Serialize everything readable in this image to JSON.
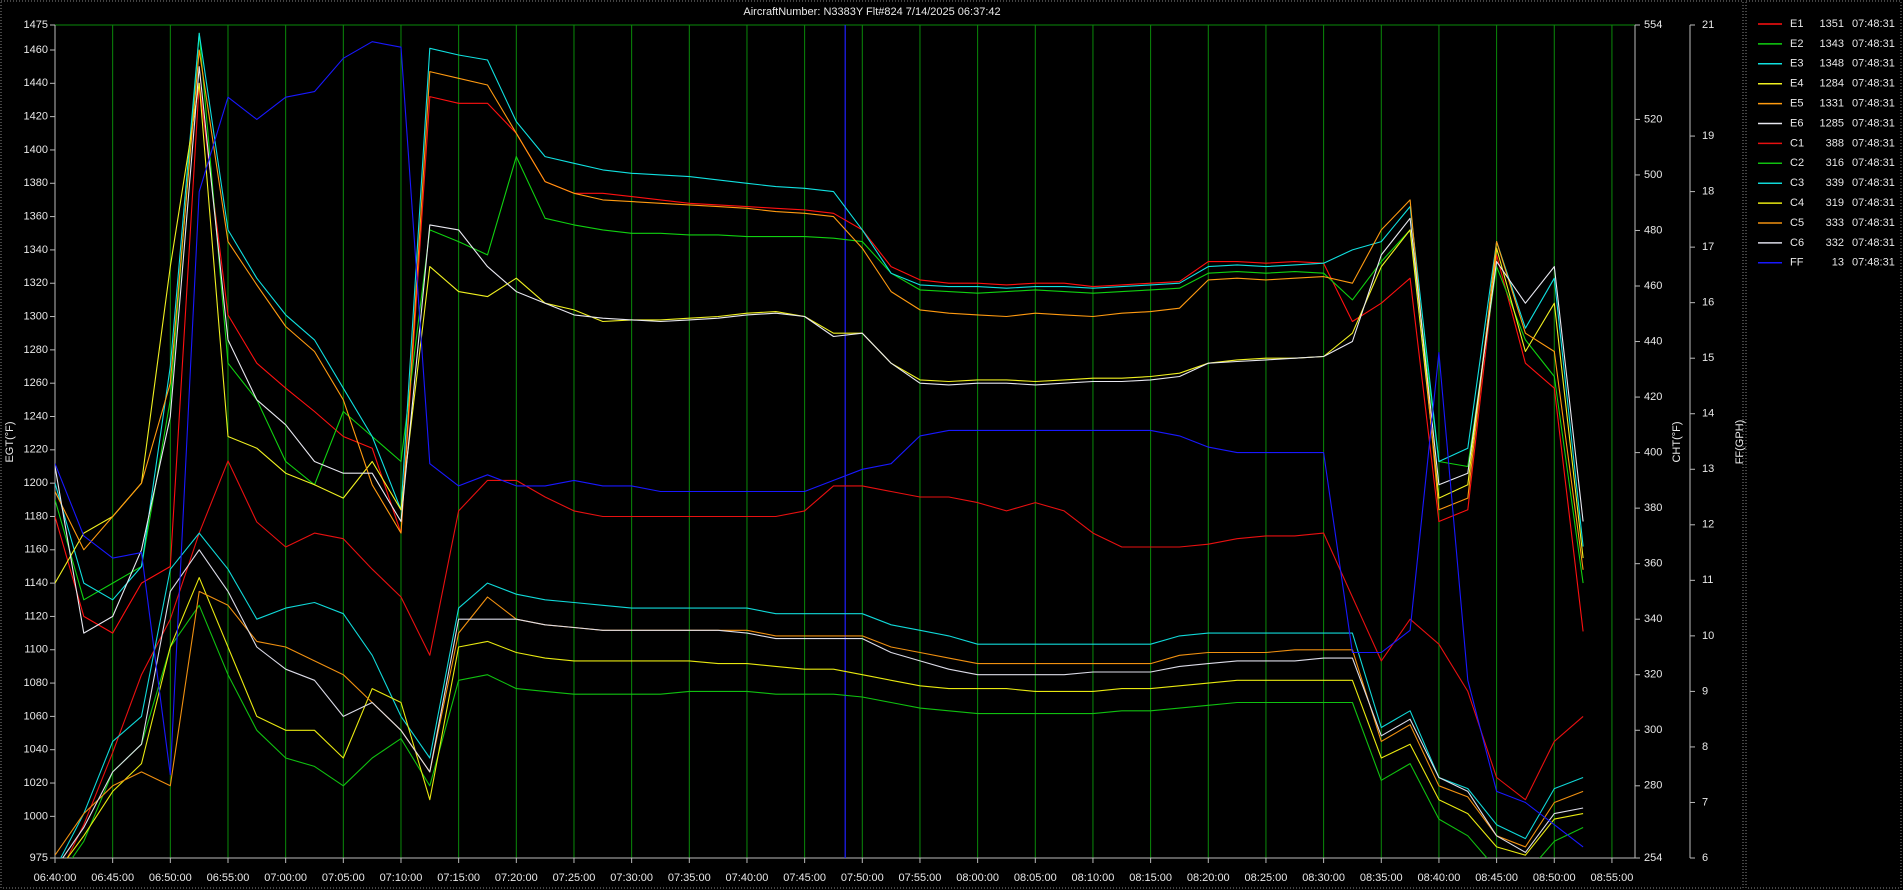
{
  "chart_data": {
    "type": "line",
    "title": "AircraftNumber: N3383Y Flt#824 7/14/2025 06:37:42",
    "y_label": "EGT(°F)",
    "y2_label": "CHT(°F)",
    "y3_label": "FF(GPH)",
    "cursor_time": "07:48:31",
    "grid": true,
    "xlim": [
      "06:40:00",
      "08:57:00"
    ],
    "xticks": [
      "06:40:00",
      "06:45:00",
      "06:50:00",
      "06:55:00",
      "07:00:00",
      "07:05:00",
      "07:10:00",
      "07:15:00",
      "07:20:00",
      "07:25:00",
      "07:30:00",
      "07:35:00",
      "07:40:00",
      "07:45:00",
      "07:50:00",
      "07:55:00",
      "08:00:00",
      "08:05:00",
      "08:10:00",
      "08:15:00",
      "08:20:00",
      "08:25:00",
      "08:30:00",
      "08:35:00",
      "08:40:00",
      "08:45:00",
      "08:50:00",
      "08:55:00"
    ],
    "ylim": [
      975,
      1475
    ],
    "yticks": [
      975,
      1000,
      1020,
      1040,
      1060,
      1080,
      1100,
      1120,
      1140,
      1160,
      1180,
      1200,
      1220,
      1240,
      1260,
      1280,
      1300,
      1320,
      1340,
      1360,
      1380,
      1400,
      1420,
      1440,
      1460,
      1475
    ],
    "y2lim": [
      254,
      554
    ],
    "y2ticks": [
      254,
      280,
      300,
      320,
      340,
      360,
      380,
      400,
      420,
      440,
      460,
      480,
      500,
      520,
      554
    ],
    "y3lim": [
      6,
      21
    ],
    "y3ticks": [
      6,
      7,
      8,
      9,
      10,
      11,
      12,
      13,
      14,
      15,
      16,
      17,
      18,
      19,
      21
    ],
    "x": [
      "06:40:00",
      "06:42:30",
      "06:45:00",
      "06:47:30",
      "06:50:00",
      "06:52:30",
      "06:55:00",
      "06:57:30",
      "07:00:00",
      "07:02:30",
      "07:05:00",
      "07:07:30",
      "07:10:00",
      "07:12:30",
      "07:15:00",
      "07:17:30",
      "07:20:00",
      "07:22:30",
      "07:25:00",
      "07:27:30",
      "07:30:00",
      "07:32:30",
      "07:35:00",
      "07:37:30",
      "07:40:00",
      "07:42:30",
      "07:45:00",
      "07:47:30",
      "07:50:00",
      "07:52:30",
      "07:55:00",
      "07:57:30",
      "08:00:00",
      "08:02:30",
      "08:05:00",
      "08:07:30",
      "08:10:00",
      "08:12:30",
      "08:15:00",
      "08:17:30",
      "08:20:00",
      "08:22:30",
      "08:25:00",
      "08:27:30",
      "08:30:00",
      "08:32:30",
      "08:35:00",
      "08:37:30",
      "08:40:00",
      "08:42:30",
      "08:45:00",
      "08:47:30",
      "08:50:00",
      "08:52:30",
      "08:55:00"
    ],
    "series": [
      {
        "name": "E1",
        "color": "#ff1010",
        "axis": "y",
        "legend_value": 1351,
        "values": [
          1180,
          1120,
          1110,
          1140,
          1150,
          1440,
          1301,
          1272,
          1257,
          1243,
          1228,
          1221,
          1170,
          1432,
          1428,
          1428,
          1410,
          1381,
          1374,
          1374,
          1372,
          1370,
          1368,
          1367,
          1366,
          1365,
          1364,
          1362,
          1352,
          1330,
          1322,
          1320,
          1320,
          1319,
          1320,
          1320,
          1318,
          1319,
          1320,
          1321,
          1333,
          1333,
          1332,
          1333,
          1332,
          1297,
          1308,
          1323,
          1177,
          1184,
          1337,
          1272,
          1257,
          1111,
          null
        ]
      },
      {
        "name": "E2",
        "color": "#10d010",
        "axis": "y",
        "legend_value": 1343,
        "values": [
          1190,
          1130,
          1140,
          1150,
          1250,
          1470,
          1272,
          1250,
          1213,
          1199,
          1243,
          1228,
          1213,
          1352,
          1345,
          1337,
          1396,
          1359,
          1355,
          1352,
          1350,
          1350,
          1349,
          1349,
          1348,
          1348,
          1348,
          1347,
          1345,
          1326,
          1316,
          1315,
          1314,
          1315,
          1316,
          1315,
          1314,
          1315,
          1316,
          1317,
          1326,
          1327,
          1326,
          1327,
          1326,
          1310,
          1333,
          1352,
          1213,
          1210,
          1330,
          1286,
          1264,
          1140,
          null
        ]
      },
      {
        "name": "E3",
        "color": "#10e0e0",
        "axis": "y",
        "legend_value": 1348,
        "values": [
          1200,
          1140,
          1130,
          1150,
          1270,
          1470,
          1352,
          1323,
          1301,
          1286,
          1257,
          1228,
          1184,
          1461,
          1457,
          1454,
          1417,
          1396,
          1392,
          1388,
          1386,
          1385,
          1384,
          1382,
          1380,
          1378,
          1377,
          1375,
          1352,
          1326,
          1319,
          1318,
          1318,
          1317,
          1318,
          1318,
          1317,
          1318,
          1319,
          1320,
          1330,
          1331,
          1330,
          1331,
          1332,
          1340,
          1345,
          1366,
          1213,
          1221,
          1345,
          1293,
          1323,
          1162,
          null
        ]
      },
      {
        "name": "E4",
        "color": "#f0f020",
        "axis": "y",
        "legend_value": 1284,
        "values": [
          1140,
          1170,
          1180,
          1200,
          1330,
          1440,
          1228,
          1221,
          1206,
          1199,
          1191,
          1213,
          1184,
          1330,
          1315,
          1312,
          1323,
          1308,
          1304,
          1297,
          1298,
          1298,
          1299,
          1300,
          1302,
          1303,
          1300,
          1290,
          1290,
          1272,
          1262,
          1261,
          1262,
          1262,
          1261,
          1262,
          1263,
          1263,
          1264,
          1266,
          1272,
          1274,
          1275,
          1275,
          1276,
          1290,
          1330,
          1352,
          1191,
          1199,
          1341,
          1279,
          1308,
          1155,
          null
        ]
      },
      {
        "name": "E5",
        "color": "#ff9a10",
        "axis": "y",
        "legend_value": 1331,
        "values": [
          1195,
          1160,
          1180,
          1200,
          1260,
          1460,
          1345,
          1319,
          1294,
          1279,
          1250,
          1199,
          1170,
          1447,
          1443,
          1439,
          1410,
          1381,
          1374,
          1370,
          1369,
          1368,
          1367,
          1366,
          1365,
          1363,
          1362,
          1360,
          1341,
          1315,
          1304,
          1302,
          1301,
          1300,
          1302,
          1301,
          1300,
          1302,
          1303,
          1305,
          1322,
          1323,
          1322,
          1323,
          1324,
          1320,
          1352,
          1370,
          1184,
          1191,
          1345,
          1290,
          1279,
          1148,
          null
        ]
      },
      {
        "name": "E6",
        "color": "#e8e8f0",
        "axis": "y",
        "legend_value": 1285,
        "values": [
          1210,
          1110,
          1120,
          1160,
          1240,
          1450,
          1286,
          1250,
          1235,
          1213,
          1206,
          1206,
          1177,
          1355,
          1352,
          1330,
          1315,
          1308,
          1301,
          1299,
          1298,
          1297,
          1298,
          1299,
          1301,
          1302,
          1300,
          1288,
          1290,
          1272,
          1260,
          1259,
          1260,
          1260,
          1259,
          1260,
          1261,
          1261,
          1262,
          1264,
          1272,
          1273,
          1274,
          1275,
          1276,
          1285,
          1337,
          1359,
          1199,
          1206,
          1333,
          1308,
          1330,
          1177,
          null
        ]
      },
      {
        "name": "C1",
        "color": "#e81010",
        "axis": "y2",
        "legend_value": 388,
        "values": [
          245,
          266,
          292,
          320,
          340,
          371,
          397,
          375,
          366,
          371,
          369,
          358,
          348,
          327,
          379,
          390,
          390,
          384,
          379,
          377,
          377,
          377,
          377,
          377,
          377,
          377,
          379,
          388,
          388,
          386,
          384,
          384,
          382,
          379,
          382,
          379,
          371,
          366,
          366,
          366,
          367,
          369,
          370,
          370,
          371,
          348,
          325,
          340,
          331,
          314,
          283,
          275,
          296,
          305,
          null
        ]
      },
      {
        "name": "C2",
        "color": "#10c010",
        "axis": "y2",
        "legend_value": 316,
        "values": [
          245,
          260,
          285,
          295,
          330,
          345,
          320,
          300,
          290,
          287,
          280,
          290,
          297,
          280,
          318,
          320,
          315,
          314,
          313,
          313,
          313,
          313,
          314,
          314,
          314,
          313,
          313,
          313,
          312,
          310,
          308,
          307,
          306,
          306,
          306,
          306,
          306,
          307,
          307,
          308,
          309,
          310,
          310,
          310,
          310,
          310,
          282,
          288,
          268,
          262,
          250,
          248,
          260,
          265,
          null
        ]
      },
      {
        "name": "C3",
        "color": "#10d8d8",
        "axis": "y2",
        "legend_value": 339,
        "values": [
          250,
          270,
          296,
          305,
          358,
          371,
          358,
          340,
          344,
          346,
          342,
          327,
          305,
          290,
          344,
          353,
          349,
          347,
          346,
          345,
          344,
          344,
          344,
          344,
          344,
          342,
          342,
          342,
          342,
          338,
          336,
          334,
          331,
          331,
          331,
          331,
          331,
          331,
          331,
          334,
          335,
          335,
          335,
          335,
          335,
          335,
          301,
          307,
          283,
          279,
          266,
          261,
          279,
          283,
          null
        ]
      },
      {
        "name": "C4",
        "color": "#e8e810",
        "axis": "y2",
        "legend_value": 319,
        "values": [
          248,
          262,
          278,
          288,
          330,
          355,
          330,
          305,
          300,
          300,
          290,
          315,
          310,
          275,
          330,
          332,
          328,
          326,
          325,
          325,
          325,
          325,
          325,
          324,
          324,
          323,
          322,
          322,
          320,
          318,
          316,
          315,
          315,
          315,
          314,
          314,
          314,
          315,
          315,
          316,
          317,
          318,
          318,
          318,
          318,
          318,
          290,
          295,
          275,
          270,
          258,
          255,
          268,
          270,
          null
        ]
      },
      {
        "name": "C5",
        "color": "#f09010",
        "axis": "y2",
        "legend_value": 333,
        "values": [
          255,
          270,
          280,
          285,
          280,
          350,
          345,
          332,
          330,
          325,
          320,
          310,
          300,
          285,
          335,
          348,
          340,
          338,
          337,
          336,
          336,
          336,
          336,
          336,
          336,
          334,
          334,
          334,
          334,
          330,
          328,
          326,
          324,
          324,
          324,
          324,
          324,
          324,
          324,
          327,
          328,
          328,
          328,
          329,
          329,
          329,
          296,
          302,
          280,
          276,
          262,
          258,
          274,
          278,
          null
        ]
      },
      {
        "name": "C6",
        "color": "#dcdce8",
        "axis": "y2",
        "legend_value": 332,
        "values": [
          250,
          265,
          285,
          295,
          350,
          365,
          350,
          330,
          322,
          318,
          305,
          310,
          300,
          285,
          340,
          340,
          340,
          338,
          337,
          336,
          336,
          336,
          336,
          336,
          335,
          333,
          333,
          333,
          333,
          328,
          325,
          322,
          320,
          320,
          320,
          320,
          321,
          321,
          321,
          323,
          324,
          325,
          325,
          325,
          326,
          326,
          298,
          304,
          283,
          278,
          262,
          256,
          270,
          272,
          null
        ]
      },
      {
        "name": "FF",
        "color": "#1818ff",
        "axis": "y3",
        "legend_value": 13,
        "values": [
          13.1,
          11.8,
          11.4,
          11.5,
          7.5,
          18.0,
          19.7,
          19.3,
          19.7,
          19.8,
          20.4,
          20.7,
          20.6,
          13.1,
          12.7,
          12.9,
          12.7,
          12.7,
          12.8,
          12.7,
          12.7,
          12.6,
          12.6,
          12.6,
          12.6,
          12.6,
          12.6,
          12.8,
          13.0,
          13.1,
          13.6,
          13.7,
          13.7,
          13.7,
          13.7,
          13.7,
          13.7,
          13.7,
          13.7,
          13.6,
          13.4,
          13.3,
          13.3,
          13.3,
          13.3,
          9.7,
          9.7,
          10.1,
          15.1,
          9.2,
          7.2,
          7.0,
          6.6,
          6.2,
          null
        ]
      }
    ]
  }
}
